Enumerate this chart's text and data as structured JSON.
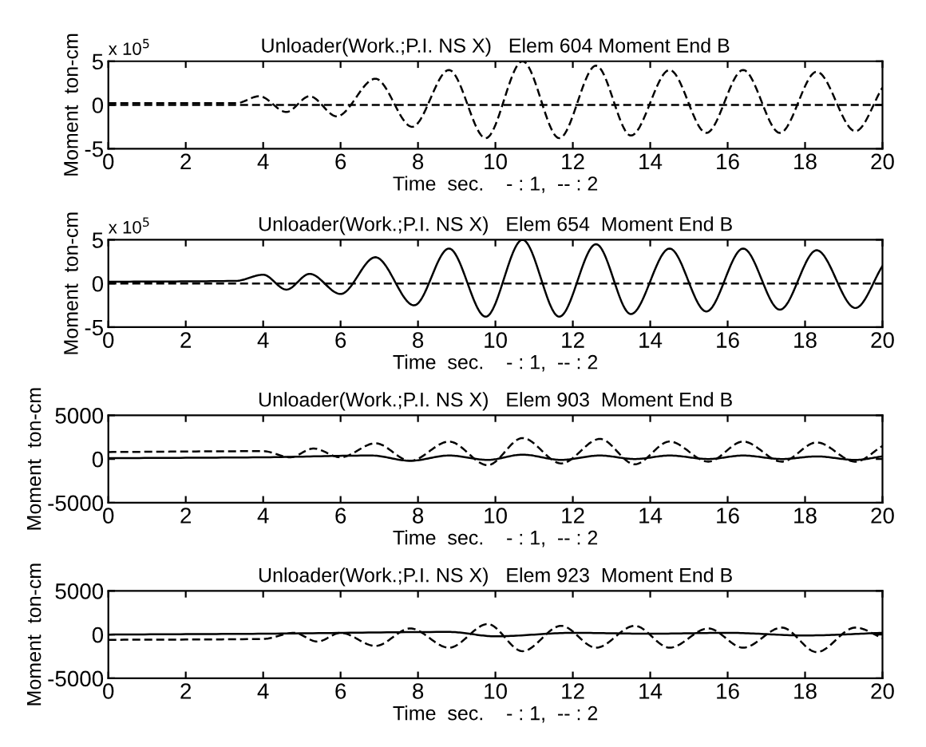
{
  "chart_data": [
    {
      "type": "line",
      "title": "Unloader(Work.;P.I. NS X)   Elem 604 Moment End B",
      "xlabel": "Time  sec.    - : 1,  -- : 2",
      "ylabel": "Moment  ton-cm",
      "annotations": [
        "x 10$^{5}$"
      ],
      "xlim": [
        0,
        20
      ],
      "xticks": [
        0,
        2,
        4,
        6,
        8,
        10,
        12,
        14,
        16,
        18,
        20
      ],
      "ylim": [
        -5,
        5
      ],
      "yticks": [
        -5,
        0,
        5
      ],
      "grid": false,
      "series": [
        {
          "color": "#000000",
          "line_style": "dashed",
          "x": [
            0,
            3.3,
            3.9,
            4.6,
            5.2,
            5.9,
            6.9,
            7.85,
            8.8,
            9.75,
            10.7,
            11.65,
            12.6,
            13.5,
            14.5,
            15.45,
            16.4,
            17.35,
            18.3,
            19.3,
            20
          ],
          "values": [
            0.2,
            0.2,
            1.0,
            -0.8,
            1.0,
            -1.3,
            3.0,
            -2.5,
            4.0,
            -3.8,
            5.0,
            -3.8,
            4.5,
            -3.5,
            4.0,
            -3.2,
            4.0,
            -3.2,
            3.8,
            -3.0,
            2.0
          ]
        },
        {
          "color": "#000000",
          "line_style": "dashed",
          "x": [
            0,
            20
          ],
          "values": [
            0,
            0
          ]
        }
      ]
    },
    {
      "type": "line",
      "title": "Unloader(Work.;P.I. NS X)   Elem 654  Moment End B",
      "xlabel": "Time  sec.    - : 1,  -- : 2",
      "ylabel": "Moment  ton-cm",
      "annotations": [
        "x 10$^{5}$"
      ],
      "xlim": [
        0,
        20
      ],
      "xticks": [
        0,
        2,
        4,
        6,
        8,
        10,
        12,
        14,
        16,
        18,
        20
      ],
      "ylim": [
        -5,
        5
      ],
      "yticks": [
        -5,
        0,
        5
      ],
      "grid": false,
      "series": [
        {
          "color": "#000000",
          "line_style": "solid",
          "x": [
            0,
            3.3,
            4.0,
            4.6,
            5.2,
            6.0,
            6.9,
            7.9,
            8.8,
            9.75,
            10.7,
            11.65,
            12.6,
            13.5,
            14.5,
            15.45,
            16.4,
            17.35,
            18.3,
            19.3,
            20
          ],
          "values": [
            0.2,
            0.3,
            1.0,
            -0.7,
            1.1,
            -1.2,
            3.0,
            -2.5,
            4.0,
            -3.8,
            5.0,
            -3.8,
            4.5,
            -3.5,
            4.0,
            -3.2,
            4.0,
            -3.0,
            3.8,
            -2.8,
            2.0
          ]
        },
        {
          "color": "#000000",
          "line_style": "dashed",
          "x": [
            0,
            20
          ],
          "values": [
            0,
            0
          ]
        }
      ]
    },
    {
      "type": "line",
      "title": "Unloader(Work.;P.I. NS X)   Elem 903  Moment End B",
      "xlabel": "Time  sec.    - : 1,  -- : 2",
      "ylabel": "Moment  ton-cm",
      "xlim": [
        0,
        20
      ],
      "xticks": [
        0,
        2,
        4,
        6,
        8,
        10,
        12,
        14,
        16,
        18,
        20
      ],
      "ylim": [
        -5000,
        5000
      ],
      "yticks": [
        -5000,
        0,
        5000
      ],
      "grid": false,
      "series": [
        {
          "color": "#000000",
          "line_style": "solid",
          "x": [
            0,
            4,
            6.8,
            7.8,
            8.8,
            9.8,
            10.7,
            11.7,
            12.7,
            13.6,
            14.5,
            15.5,
            16.4,
            17.4,
            18.3,
            19.3,
            20
          ],
          "values": [
            100,
            200,
            400,
            -200,
            400,
            -100,
            500,
            -100,
            400,
            0,
            400,
            0,
            400,
            0,
            300,
            -100,
            300
          ]
        },
        {
          "color": "#000000",
          "line_style": "dashed",
          "x": [
            0,
            4,
            4.7,
            5.3,
            6,
            6.9,
            7.8,
            8.8,
            9.8,
            10.7,
            11.7,
            12.7,
            13.6,
            14.5,
            15.5,
            16.4,
            17.4,
            18.3,
            19.3,
            20
          ],
          "values": [
            800,
            900,
            200,
            1200,
            200,
            1800,
            -200,
            2000,
            -700,
            2400,
            -500,
            2300,
            -600,
            2000,
            -300,
            2000,
            -300,
            1900,
            -300,
            1500
          ]
        }
      ]
    },
    {
      "type": "line",
      "title": "Unloader(Work.;P.I. NS X)   Elem 923  Moment End B",
      "xlabel": "Time  sec.    - : 1,  -- : 2",
      "ylabel": "Moment  ton-cm",
      "xlim": [
        0,
        20
      ],
      "xticks": [
        0,
        2,
        4,
        6,
        8,
        10,
        12,
        14,
        16,
        18,
        20
      ],
      "ylim": [
        -5000,
        5000
      ],
      "yticks": [
        -5000,
        0,
        5000
      ],
      "grid": false,
      "series": [
        {
          "color": "#000000",
          "line_style": "solid",
          "x": [
            0,
            4,
            8.8,
            10,
            12,
            14,
            16,
            18,
            20
          ],
          "values": [
            0,
            100,
            300,
            -200,
            200,
            100,
            200,
            -100,
            200
          ]
        },
        {
          "color": "#000000",
          "line_style": "dashed",
          "x": [
            0,
            4,
            4.8,
            5.4,
            6,
            6.9,
            7.8,
            8.8,
            9.8,
            10.7,
            11.7,
            12.6,
            13.6,
            14.5,
            15.5,
            16.4,
            17.4,
            18.3,
            19.3,
            20
          ],
          "values": [
            -600,
            -500,
            200,
            -800,
            200,
            -1300,
            700,
            -1500,
            1200,
            -1900,
            1000,
            -1500,
            1000,
            -1500,
            700,
            -1500,
            800,
            -2000,
            800,
            -400
          ]
        }
      ]
    }
  ]
}
